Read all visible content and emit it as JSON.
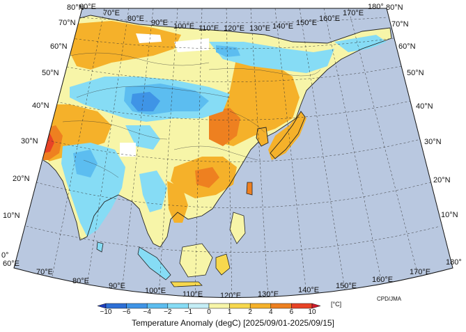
{
  "map": {
    "title": "Temperature Anomaly (degC) [2025/09/01-2025/09/15]",
    "credit": "CPD/JMA",
    "units_label": "[°C]",
    "lat_labels": [
      "0°",
      "10°N",
      "20°N",
      "30°N",
      "40°N",
      "50°N",
      "60°N",
      "70°N",
      "80°N"
    ],
    "lon_labels_top": [
      "60°E",
      "70°E",
      "80°E",
      "90°E",
      "100°E",
      "110°E",
      "120°E",
      "130°E",
      "140°E",
      "150°E",
      "160°E",
      "170°E",
      "180°"
    ],
    "lon_labels_bottom": [
      "60°E",
      "70°E",
      "80°E",
      "90°E",
      "100°E",
      "110°E",
      "120°E",
      "130°E",
      "140°E",
      "150°E",
      "160°E",
      "170°E",
      "180°"
    ],
    "colorbar": {
      "tick_labels": [
        "−10",
        "−6",
        "−4",
        "−2",
        "−1",
        "0",
        "1",
        "2",
        "4",
        "6",
        "10"
      ],
      "colors": [
        "#1f3fbf",
        "#2d6fd6",
        "#3f94e6",
        "#5cbdf0",
        "#86dcf5",
        "#c4eef6",
        "#f7f5a8",
        "#f7d84d",
        "#f5b12a",
        "#ee8020",
        "#e84326",
        "#cf1a2c"
      ]
    },
    "colors": {
      "ocean": "#b9c8e0",
      "missing": "#ffffff",
      "coast": "#222222"
    }
  }
}
